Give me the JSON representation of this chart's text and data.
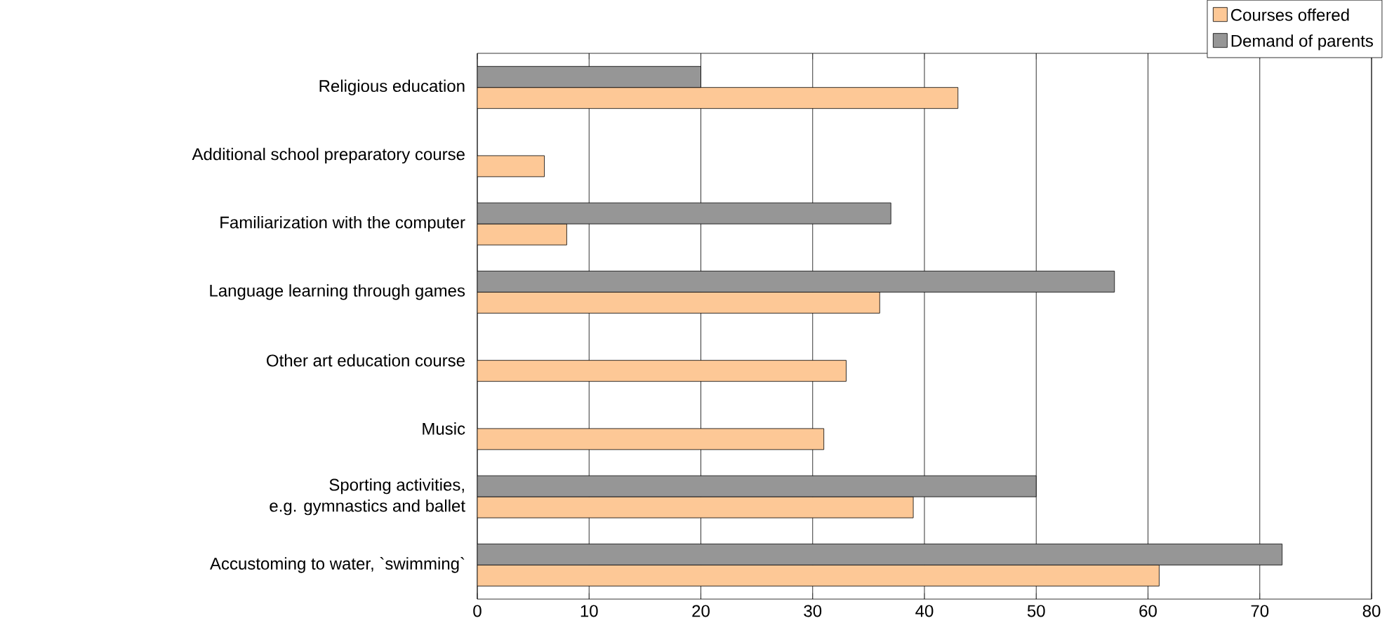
{
  "chart_data": {
    "type": "bar",
    "orientation": "horizontal",
    "categories": [
      "Religious education",
      "Additional school preparatory course",
      "Familiarization with the computer",
      "Language learning through games",
      "Other art education course",
      "Music",
      "Sporting activities,\ne.g. gymnastics and ballet",
      "Accustoming to water, `swimming`"
    ],
    "series": [
      {
        "name": "Courses offered",
        "color": "#fdc896",
        "values": [
          43,
          6,
          8,
          36,
          33,
          31,
          39,
          61
        ]
      },
      {
        "name": "Demand of parents",
        "color": "#969696",
        "values": [
          20,
          null,
          37,
          57,
          null,
          null,
          50,
          72
        ]
      }
    ],
    "xlim": [
      0,
      80
    ],
    "xticks": [
      0,
      10,
      20,
      30,
      40,
      50,
      60,
      70,
      80
    ],
    "grid": "x",
    "legend": "top right"
  }
}
